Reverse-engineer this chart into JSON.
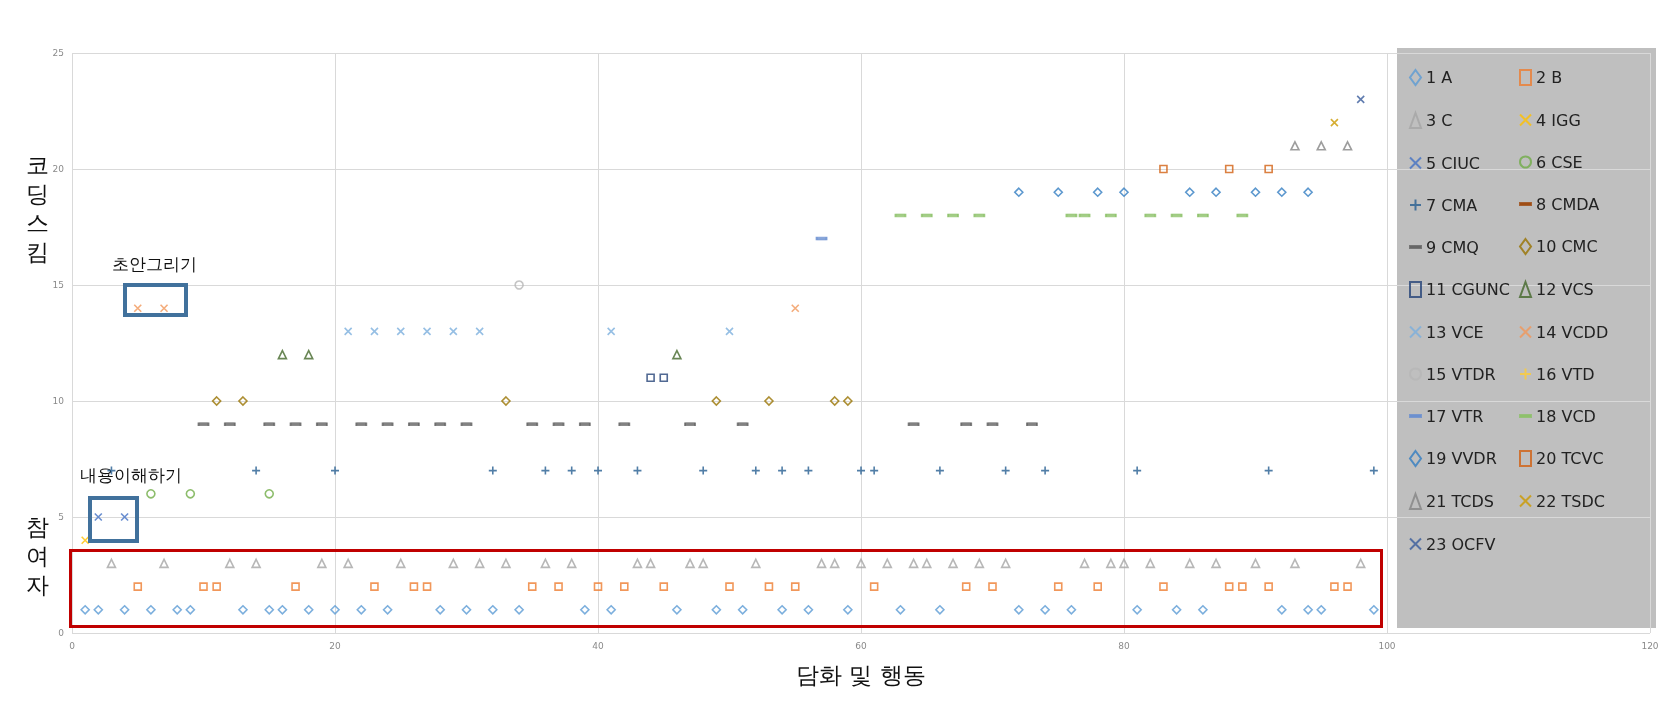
{
  "chart_data": {
    "type": "scatter",
    "xlabel": "담화 및 행동",
    "ylabel": "코딩스킴",
    "xlim": [
      0,
      120
    ],
    "xticks": [
      0,
      20,
      40,
      60,
      80,
      100,
      120
    ],
    "ylim": [
      0,
      25
    ],
    "yticks": [
      0,
      5,
      10,
      15,
      20,
      25
    ],
    "grid": true,
    "legend": "right",
    "annotations": [
      "초안그리기",
      "내용이해하기",
      "참여자"
    ],
    "series": [
      {
        "name": "1 A",
        "color": "#5b9bd5",
        "marker": "diamond",
        "x": [
          1,
          2,
          4,
          6,
          8,
          9,
          13,
          15,
          16,
          18,
          20,
          22,
          24,
          28,
          30,
          32,
          34,
          39,
          41,
          46,
          49,
          51,
          54,
          56,
          59,
          63,
          66,
          72,
          74,
          76,
          81,
          84,
          86,
          92,
          94,
          95,
          99
        ],
        "values": [
          1,
          1,
          1,
          1,
          1,
          1,
          1,
          1,
          1,
          1,
          1,
          1,
          1,
          1,
          1,
          1,
          1,
          1,
          1,
          1,
          1,
          1,
          1,
          1,
          1,
          1,
          1,
          1,
          1,
          1,
          1,
          1,
          1,
          1,
          1,
          1,
          1
        ]
      },
      {
        "name": "2 B",
        "color": "#ed7d31",
        "marker": "square",
        "x": [
          5,
          10,
          11,
          17,
          23,
          26,
          27,
          35,
          37,
          40,
          42,
          45,
          50,
          53,
          55,
          61,
          68,
          70,
          75,
          78,
          83,
          88,
          89,
          91,
          96,
          97
        ],
        "values": [
          2,
          2,
          2,
          2,
          2,
          2,
          2,
          2,
          2,
          2,
          2,
          2,
          2,
          2,
          2,
          2,
          2,
          2,
          2,
          2,
          2,
          2,
          2,
          2,
          2,
          2
        ]
      },
      {
        "name": "3 C",
        "color": "#a5a5a5",
        "marker": "triangle",
        "x": [
          3,
          7,
          12,
          14,
          19,
          21,
          25,
          29,
          31,
          33,
          36,
          38,
          43,
          44,
          47,
          48,
          52,
          57,
          58,
          60,
          62,
          64,
          65,
          67,
          69,
          71,
          77,
          79,
          80,
          82,
          85,
          87,
          90,
          93,
          98
        ],
        "values": [
          3,
          3,
          3,
          3,
          3,
          3,
          3,
          3,
          3,
          3,
          3,
          3,
          3,
          3,
          3,
          3,
          3,
          3,
          3,
          3,
          3,
          3,
          3,
          3,
          3,
          3,
          3,
          3,
          3,
          3,
          3,
          3,
          3,
          3,
          3
        ]
      },
      {
        "name": "4 IGG",
        "color": "#ffc000",
        "marker": "cross",
        "x": [
          1
        ],
        "values": [
          4
        ]
      },
      {
        "name": "5 CIUC",
        "color": "#4472c4",
        "marker": "cross",
        "x": [
          2,
          4
        ],
        "values": [
          5,
          5
        ]
      },
      {
        "name": "6 CSE",
        "color": "#70ad47",
        "marker": "circle",
        "x": [
          6,
          9,
          15
        ],
        "values": [
          6,
          6,
          6
        ]
      },
      {
        "name": "7 CMA",
        "color": "#255e91",
        "marker": "plus",
        "x": [
          3,
          14,
          20,
          32,
          36,
          38,
          40,
          43,
          48,
          52,
          54,
          56,
          60,
          61,
          66,
          71,
          74,
          81,
          91,
          99
        ],
        "values": [
          7,
          7,
          7,
          7,
          7,
          7,
          7,
          7,
          7,
          7,
          7,
          7,
          7,
          7,
          7,
          7,
          7,
          7,
          7,
          7
        ]
      },
      {
        "name": "8 CMDA",
        "color": "#9e480e"
      },
      {
        "name": "9 CMQ",
        "color": "#636363",
        "x": [
          10,
          12,
          15,
          17,
          19,
          22,
          24,
          26,
          28,
          30,
          35,
          37,
          39,
          42,
          47,
          51,
          64,
          68,
          70,
          73
        ],
        "values": [
          9,
          9,
          9,
          9,
          9,
          9,
          9,
          9,
          9,
          9,
          9,
          9,
          9,
          9,
          9,
          9,
          9,
          9,
          9,
          9
        ]
      },
      {
        "name": "10 CMC",
        "color": "#997300",
        "marker": "diamond",
        "x": [
          11,
          13,
          33,
          49,
          53,
          58,
          59
        ],
        "values": [
          10,
          10,
          10,
          10,
          10,
          10,
          10
        ]
      },
      {
        "name": "11 CGUNC",
        "color": "#264478",
        "marker": "square",
        "x": [
          44,
          45
        ],
        "values": [
          11,
          11
        ]
      },
      {
        "name": "12 VCS",
        "color": "#43682b",
        "marker": "triangle",
        "x": [
          16,
          18,
          46
        ],
        "values": [
          12,
          12,
          12
        ]
      },
      {
        "name": "13 VCE",
        "color": "#7cafdd",
        "marker": "cross",
        "x": [
          21,
          23,
          25,
          27,
          29,
          31,
          41,
          50
        ],
        "values": [
          13,
          13,
          13,
          13,
          13,
          13,
          13,
          13
        ]
      },
      {
        "name": "14 VCDD",
        "color": "#f1975a",
        "marker": "cross",
        "x": [
          5,
          7,
          55
        ],
        "values": [
          14,
          14,
          14
        ]
      },
      {
        "name": "15 VTDR",
        "color": "#b7b7b7",
        "marker": "circle",
        "x": [
          34
        ],
        "values": [
          15
        ]
      },
      {
        "name": "16 VTD",
        "color": "#ffcd33",
        "marker": "plus"
      },
      {
        "name": "17 VTR",
        "color": "#698ed0",
        "x": [
          57
        ],
        "values": [
          17
        ]
      },
      {
        "name": "18 VCD",
        "color": "#8cc168",
        "x": [
          63,
          65,
          67,
          69,
          76,
          77,
          79,
          82,
          84,
          86,
          89
        ],
        "values": [
          18,
          18,
          18,
          18,
          18,
          18,
          18,
          18,
          18,
          18,
          18
        ]
      },
      {
        "name": "19 VVDR",
        "color": "#327dc2",
        "marker": "diamond",
        "x": [
          72,
          75,
          78,
          80,
          85,
          87,
          90,
          92,
          94
        ],
        "values": [
          19,
          19,
          19,
          19,
          19,
          19,
          19,
          19,
          19
        ]
      },
      {
        "name": "20 TCVC",
        "color": "#d26012",
        "marker": "square",
        "x": [
          83,
          88,
          91
        ],
        "values": [
          20,
          20,
          20
        ]
      },
      {
        "name": "21 TCDS",
        "color": "#848484",
        "marker": "triangle",
        "x": [
          93,
          95,
          97
        ],
        "values": [
          21,
          21,
          21
        ]
      },
      {
        "name": "22 TSDC",
        "color": "#cc9a00",
        "marker": "cross",
        "x": [
          96
        ],
        "values": [
          22
        ]
      },
      {
        "name": "23 OCFV",
        "color": "#3a5c9c",
        "marker": "cross",
        "x": [
          98
        ],
        "values": [
          23
        ]
      }
    ]
  }
}
